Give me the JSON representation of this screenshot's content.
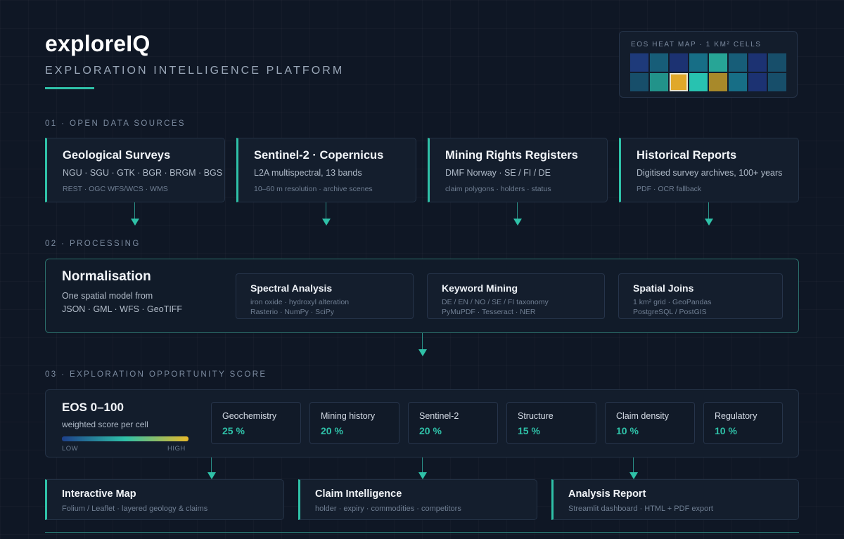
{
  "header": {
    "brand": "exploreIQ",
    "subtitle": "EXPLORATION INTELLIGENCE PLATFORM"
  },
  "heatmap": {
    "title": "EOS HEAT MAP · 1 KM² CELLS",
    "cells": [
      [
        "#1e3a7a",
        "#175d78",
        "#1c3272",
        "#176e86",
        "#27a596",
        "#175d78",
        "#1c3272",
        "#174e6a"
      ],
      [
        "#174e6a",
        "#22938a",
        "#e0a82a",
        "#28c2b0",
        "#a8892a",
        "#176e86",
        "#1c3272",
        "#174e6a"
      ]
    ],
    "selected_cell": [
      1,
      2
    ]
  },
  "sections": {
    "sources": "01 · OPEN DATA SOURCES",
    "processing": "02 · PROCESSING",
    "score": "03 · EXPLORATION OPPORTUNITY SCORE"
  },
  "sources": [
    {
      "title": "Geological Surveys",
      "subtitle": "NGU · SGU · GTK · BGR · BRGM · BGS",
      "detail": "REST · OGC WFS/WCS · WMS"
    },
    {
      "title": "Sentinel-2 · Copernicus",
      "subtitle": "L2A multispectral, 13 bands",
      "detail": "10–60 m resolution · archive scenes"
    },
    {
      "title": "Mining Rights Registers",
      "subtitle": "DMF Norway · SE / FI / DE",
      "detail": "claim polygons · holders · status"
    },
    {
      "title": "Historical Reports",
      "subtitle": "Digitised survey archives, 100+ years",
      "detail": "PDF · OCR fallback"
    }
  ],
  "processing": {
    "title": "Normalisation",
    "desc_line1": "One spatial model from",
    "desc_line2": "JSON · GML · WFS · GeoTIFF",
    "modules": [
      {
        "title": "Spectral Analysis",
        "line1": "iron oxide · hydroxyl alteration",
        "line2": "Rasterio · NumPy · SciPy"
      },
      {
        "title": "Keyword Mining",
        "line1": "DE / EN / NO / SE / FI taxonomy",
        "line2": "PyMuPDF · Tesseract · NER"
      },
      {
        "title": "Spatial Joins",
        "line1": "1 km² grid · GeoPandas",
        "line2": "PostgreSQL / PostGIS"
      }
    ]
  },
  "score": {
    "title": "EOS 0–100",
    "subtitle": "weighted score per cell",
    "low_label": "LOW",
    "high_label": "HIGH",
    "weights": [
      {
        "name": "Geochemistry",
        "value": "25 %"
      },
      {
        "name": "Mining history",
        "value": "20 %"
      },
      {
        "name": "Sentinel-2",
        "value": "20 %"
      },
      {
        "name": "Structure",
        "value": "15 %"
      },
      {
        "name": "Claim density",
        "value": "10 %"
      },
      {
        "name": "Regulatory",
        "value": "10 %"
      }
    ]
  },
  "outputs": [
    {
      "title": "Interactive Map",
      "detail": "Folium / Leaflet · layered geology & claims"
    },
    {
      "title": "Claim Intelligence",
      "detail": "holder · expiry · commodities · competitors"
    },
    {
      "title": "Analysis Report",
      "detail": "Streamlit dashboard · HTML + PDF export"
    }
  ],
  "colors": {
    "accent": "#2fc1a8",
    "background": "#0f1725"
  }
}
